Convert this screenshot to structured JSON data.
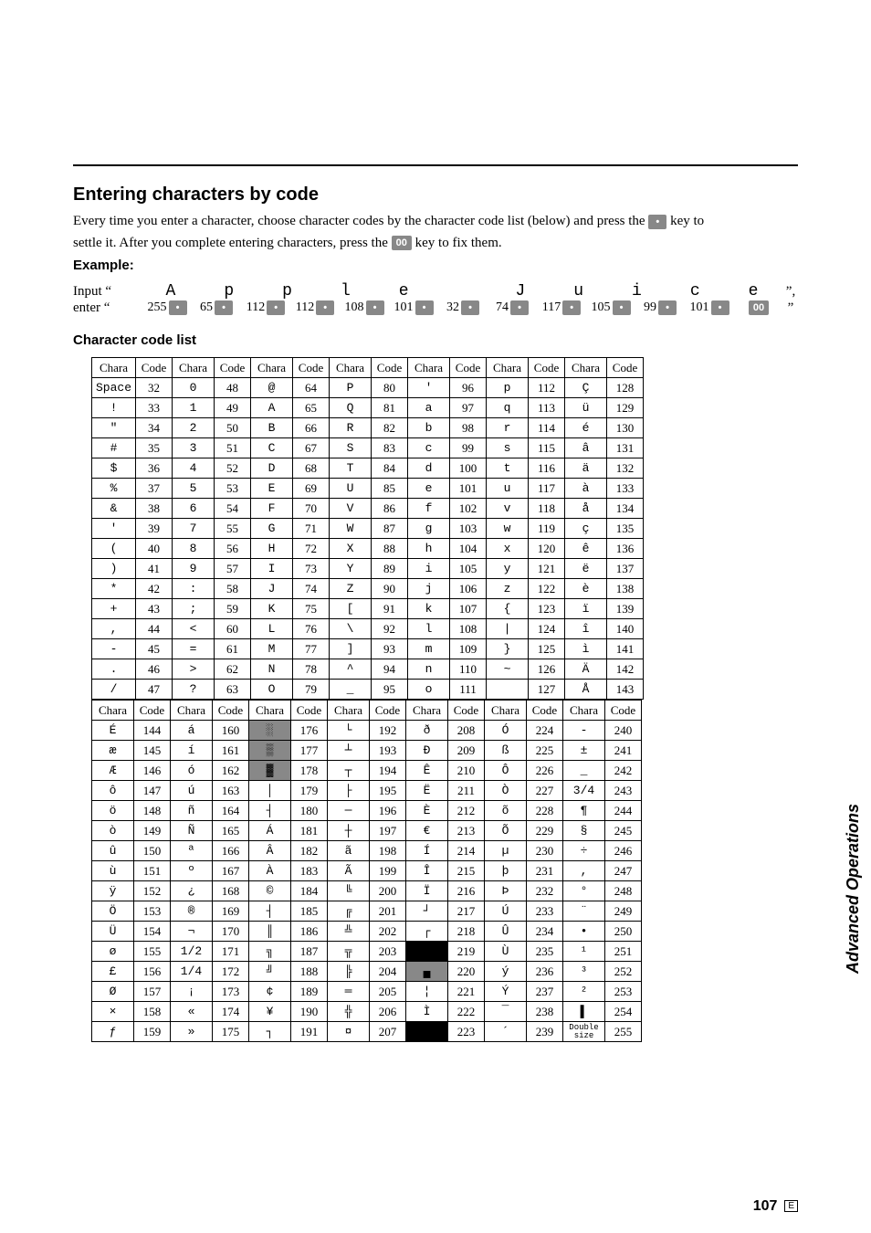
{
  "section_title": "Entering characters by code",
  "intro_line1_a": "Every time you enter a character, choose character codes by the character code list (below) and press the ",
  "intro_line1_b": " key to",
  "intro_line2_a": "settle it. After you complete entering characters, press the ",
  "intro_line2_b": " key to fix them.",
  "key_dot_label": "•",
  "key_00_label": "00",
  "example_label": "Example:",
  "input_label": "Input “",
  "enter_label": "enter “",
  "close_comma": "”,",
  "close_quote": "”",
  "example_chars": [
    "A",
    "p",
    "p",
    "l",
    "e",
    " ",
    "J",
    "u",
    "i",
    "c",
    "e"
  ],
  "example_codes": [
    "255",
    "65",
    "112",
    "112",
    "108",
    "101",
    "32",
    "74",
    "117",
    "105",
    "99",
    "101"
  ],
  "code_list_title": "Character code list",
  "headers": [
    "Chara",
    "Code",
    "Chara",
    "Code",
    "Chara",
    "Code",
    "Chara",
    "Code",
    "Chara",
    "Code",
    "Chara",
    "Code",
    "Chara",
    "Code"
  ],
  "table1": [
    [
      {
        "c": "Space",
        "k": 32
      },
      {
        "c": "0",
        "k": 48
      },
      {
        "c": "@",
        "k": 64
      },
      {
        "c": "P",
        "k": 80
      },
      {
        "c": "'",
        "k": 96
      },
      {
        "c": "p",
        "k": 112
      },
      {
        "c": "Ç",
        "k": 128
      }
    ],
    [
      {
        "c": "!",
        "k": 33
      },
      {
        "c": "1",
        "k": 49
      },
      {
        "c": "A",
        "k": 65
      },
      {
        "c": "Q",
        "k": 81
      },
      {
        "c": "a",
        "k": 97
      },
      {
        "c": "q",
        "k": 113
      },
      {
        "c": "ü",
        "k": 129
      }
    ],
    [
      {
        "c": "\"",
        "k": 34
      },
      {
        "c": "2",
        "k": 50
      },
      {
        "c": "B",
        "k": 66
      },
      {
        "c": "R",
        "k": 82
      },
      {
        "c": "b",
        "k": 98
      },
      {
        "c": "r",
        "k": 114
      },
      {
        "c": "é",
        "k": 130
      }
    ],
    [
      {
        "c": "#",
        "k": 35
      },
      {
        "c": "3",
        "k": 51
      },
      {
        "c": "C",
        "k": 67
      },
      {
        "c": "S",
        "k": 83
      },
      {
        "c": "c",
        "k": 99
      },
      {
        "c": "s",
        "k": 115
      },
      {
        "c": "â",
        "k": 131
      }
    ],
    [
      {
        "c": "$",
        "k": 36
      },
      {
        "c": "4",
        "k": 52
      },
      {
        "c": "D",
        "k": 68
      },
      {
        "c": "T",
        "k": 84
      },
      {
        "c": "d",
        "k": 100
      },
      {
        "c": "t",
        "k": 116
      },
      {
        "c": "ä",
        "k": 132
      }
    ],
    [
      {
        "c": "%",
        "k": 37
      },
      {
        "c": "5",
        "k": 53
      },
      {
        "c": "E",
        "k": 69
      },
      {
        "c": "U",
        "k": 85
      },
      {
        "c": "e",
        "k": 101
      },
      {
        "c": "u",
        "k": 117
      },
      {
        "c": "à",
        "k": 133
      }
    ],
    [
      {
        "c": "&",
        "k": 38
      },
      {
        "c": "6",
        "k": 54
      },
      {
        "c": "F",
        "k": 70
      },
      {
        "c": "V",
        "k": 86
      },
      {
        "c": "f",
        "k": 102
      },
      {
        "c": "v",
        "k": 118
      },
      {
        "c": "å",
        "k": 134
      }
    ],
    [
      {
        "c": "'",
        "k": 39
      },
      {
        "c": "7",
        "k": 55
      },
      {
        "c": "G",
        "k": 71
      },
      {
        "c": "W",
        "k": 87
      },
      {
        "c": "g",
        "k": 103
      },
      {
        "c": "w",
        "k": 119
      },
      {
        "c": "ç",
        "k": 135
      }
    ],
    [
      {
        "c": "(",
        "k": 40
      },
      {
        "c": "8",
        "k": 56
      },
      {
        "c": "H",
        "k": 72
      },
      {
        "c": "X",
        "k": 88
      },
      {
        "c": "h",
        "k": 104
      },
      {
        "c": "x",
        "k": 120
      },
      {
        "c": "ê",
        "k": 136
      }
    ],
    [
      {
        "c": ")",
        "k": 41
      },
      {
        "c": "9",
        "k": 57
      },
      {
        "c": "I",
        "k": 73
      },
      {
        "c": "Y",
        "k": 89
      },
      {
        "c": "i",
        "k": 105
      },
      {
        "c": "y",
        "k": 121
      },
      {
        "c": "ë",
        "k": 137
      }
    ],
    [
      {
        "c": "*",
        "k": 42
      },
      {
        "c": ":",
        "k": 58
      },
      {
        "c": "J",
        "k": 74
      },
      {
        "c": "Z",
        "k": 90
      },
      {
        "c": "j",
        "k": 106
      },
      {
        "c": "z",
        "k": 122
      },
      {
        "c": "è",
        "k": 138
      }
    ],
    [
      {
        "c": "+",
        "k": 43
      },
      {
        "c": ";",
        "k": 59
      },
      {
        "c": "K",
        "k": 75
      },
      {
        "c": "[",
        "k": 91
      },
      {
        "c": "k",
        "k": 107
      },
      {
        "c": "{",
        "k": 123
      },
      {
        "c": "ï",
        "k": 139
      }
    ],
    [
      {
        "c": ",",
        "k": 44
      },
      {
        "c": "<",
        "k": 60
      },
      {
        "c": "L",
        "k": 76
      },
      {
        "c": "\\",
        "k": 92
      },
      {
        "c": "l",
        "k": 108
      },
      {
        "c": "|",
        "k": 124
      },
      {
        "c": "î",
        "k": 140
      }
    ],
    [
      {
        "c": "-",
        "k": 45
      },
      {
        "c": "=",
        "k": 61
      },
      {
        "c": "M",
        "k": 77
      },
      {
        "c": "]",
        "k": 93
      },
      {
        "c": "m",
        "k": 109
      },
      {
        "c": "}",
        "k": 125
      },
      {
        "c": "ì",
        "k": 141
      }
    ],
    [
      {
        "c": ".",
        "k": 46
      },
      {
        "c": ">",
        "k": 62
      },
      {
        "c": "N",
        "k": 78
      },
      {
        "c": "^",
        "k": 94
      },
      {
        "c": "n",
        "k": 110
      },
      {
        "c": "~",
        "k": 126
      },
      {
        "c": "Ä",
        "k": 142
      }
    ],
    [
      {
        "c": "/",
        "k": 47
      },
      {
        "c": "?",
        "k": 63
      },
      {
        "c": "O",
        "k": 79
      },
      {
        "c": "_",
        "k": 95
      },
      {
        "c": "o",
        "k": 111
      },
      {
        "c": "",
        "k": 127
      },
      {
        "c": "Å",
        "k": 143
      }
    ]
  ],
  "table2": [
    [
      {
        "c": "É",
        "k": 144
      },
      {
        "c": "á",
        "k": 160
      },
      {
        "c": "░",
        "k": 176,
        "cls": "shade"
      },
      {
        "c": "└",
        "k": 192
      },
      {
        "c": "ð",
        "k": 208
      },
      {
        "c": "Ó",
        "k": 224
      },
      {
        "c": "-",
        "k": 240
      }
    ],
    [
      {
        "c": "æ",
        "k": 145
      },
      {
        "c": "í",
        "k": 161
      },
      {
        "c": "▒",
        "k": 177,
        "cls": "shade"
      },
      {
        "c": "┴",
        "k": 193
      },
      {
        "c": "Ð",
        "k": 209
      },
      {
        "c": "ß",
        "k": 225
      },
      {
        "c": "±",
        "k": 241
      }
    ],
    [
      {
        "c": "Æ",
        "k": 146
      },
      {
        "c": "ó",
        "k": 162
      },
      {
        "c": "▓",
        "k": 178,
        "cls": "shade"
      },
      {
        "c": "┬",
        "k": 194
      },
      {
        "c": "Ê",
        "k": 210
      },
      {
        "c": "Ô",
        "k": 226
      },
      {
        "c": "_",
        "k": 242
      }
    ],
    [
      {
        "c": "ô",
        "k": 147
      },
      {
        "c": "ú",
        "k": 163
      },
      {
        "c": "│",
        "k": 179
      },
      {
        "c": "├",
        "k": 195
      },
      {
        "c": "Ë",
        "k": 211
      },
      {
        "c": "Ò",
        "k": 227
      },
      {
        "c": "3/4",
        "k": 243
      }
    ],
    [
      {
        "c": "ö",
        "k": 148
      },
      {
        "c": "ñ",
        "k": 164
      },
      {
        "c": "┤",
        "k": 180
      },
      {
        "c": "─",
        "k": 196
      },
      {
        "c": "È",
        "k": 212
      },
      {
        "c": "õ",
        "k": 228
      },
      {
        "c": "¶",
        "k": 244
      }
    ],
    [
      {
        "c": "ò",
        "k": 149
      },
      {
        "c": "Ñ",
        "k": 165
      },
      {
        "c": "Á",
        "k": 181
      },
      {
        "c": "┼",
        "k": 197
      },
      {
        "c": "€",
        "k": 213
      },
      {
        "c": "Õ",
        "k": 229
      },
      {
        "c": "§",
        "k": 245
      }
    ],
    [
      {
        "c": "û",
        "k": 150
      },
      {
        "c": "ª",
        "k": 166
      },
      {
        "c": "Â",
        "k": 182
      },
      {
        "c": "ã",
        "k": 198
      },
      {
        "c": "Í",
        "k": 214
      },
      {
        "c": "µ",
        "k": 230
      },
      {
        "c": "÷",
        "k": 246
      }
    ],
    [
      {
        "c": "ù",
        "k": 151
      },
      {
        "c": "º",
        "k": 167
      },
      {
        "c": "À",
        "k": 183
      },
      {
        "c": "Ã",
        "k": 199
      },
      {
        "c": "Î",
        "k": 215
      },
      {
        "c": "þ",
        "k": 231
      },
      {
        "c": ",",
        "k": 247
      }
    ],
    [
      {
        "c": "ÿ",
        "k": 152
      },
      {
        "c": "¿",
        "k": 168
      },
      {
        "c": "©",
        "k": 184
      },
      {
        "c": "╚",
        "k": 200
      },
      {
        "c": "Ï",
        "k": 216
      },
      {
        "c": "Þ",
        "k": 232
      },
      {
        "c": "°",
        "k": 248
      }
    ],
    [
      {
        "c": "Ö",
        "k": 153
      },
      {
        "c": "®",
        "k": 169
      },
      {
        "c": "┤",
        "k": 185
      },
      {
        "c": "╔",
        "k": 201
      },
      {
        "c": "┘",
        "k": 217
      },
      {
        "c": "Ú",
        "k": 233
      },
      {
        "c": "¨",
        "k": 249
      }
    ],
    [
      {
        "c": "Ü",
        "k": 154
      },
      {
        "c": "¬",
        "k": 170
      },
      {
        "c": "║",
        "k": 186
      },
      {
        "c": "╩",
        "k": 202
      },
      {
        "c": "┌",
        "k": 218
      },
      {
        "c": "Û",
        "k": 234
      },
      {
        "c": "•",
        "k": 250
      }
    ],
    [
      {
        "c": "ø",
        "k": 155
      },
      {
        "c": "1/2",
        "k": 171
      },
      {
        "c": "╗",
        "k": 187
      },
      {
        "c": "╦",
        "k": 203
      },
      {
        "c": "█",
        "k": 219,
        "cls": "blackcell"
      },
      {
        "c": "Ù",
        "k": 235
      },
      {
        "c": "¹",
        "k": 251
      }
    ],
    [
      {
        "c": "£",
        "k": 156
      },
      {
        "c": "1/4",
        "k": 172
      },
      {
        "c": "╝",
        "k": 188
      },
      {
        "c": "╠",
        "k": 204
      },
      {
        "c": "▄",
        "k": 220,
        "cls": "shade"
      },
      {
        "c": "ý",
        "k": 236
      },
      {
        "c": "³",
        "k": 252
      }
    ],
    [
      {
        "c": "Ø",
        "k": 157
      },
      {
        "c": "¡",
        "k": 173
      },
      {
        "c": "¢",
        "k": 189
      },
      {
        "c": "═",
        "k": 205
      },
      {
        "c": "¦",
        "k": 221
      },
      {
        "c": "Ý",
        "k": 237
      },
      {
        "c": "²",
        "k": 253
      }
    ],
    [
      {
        "c": "×",
        "k": 158
      },
      {
        "c": "«",
        "k": 174
      },
      {
        "c": "¥",
        "k": 190
      },
      {
        "c": "╬",
        "k": 206
      },
      {
        "c": "Ì",
        "k": 222
      },
      {
        "c": "¯",
        "k": 238
      },
      {
        "c": "▌",
        "k": 254
      }
    ],
    [
      {
        "c": "ƒ",
        "k": 159
      },
      {
        "c": "»",
        "k": 175
      },
      {
        "c": "┐",
        "k": 191
      },
      {
        "c": "¤",
        "k": 207
      },
      {
        "c": "▀",
        "k": 223,
        "cls": "blackcell"
      },
      {
        "c": "´",
        "k": 239
      },
      {
        "c": "Double size",
        "k": 255,
        "tiny": true
      }
    ]
  ],
  "side_label": "Advanced Operations",
  "page_number": "107",
  "page_letter": "E"
}
